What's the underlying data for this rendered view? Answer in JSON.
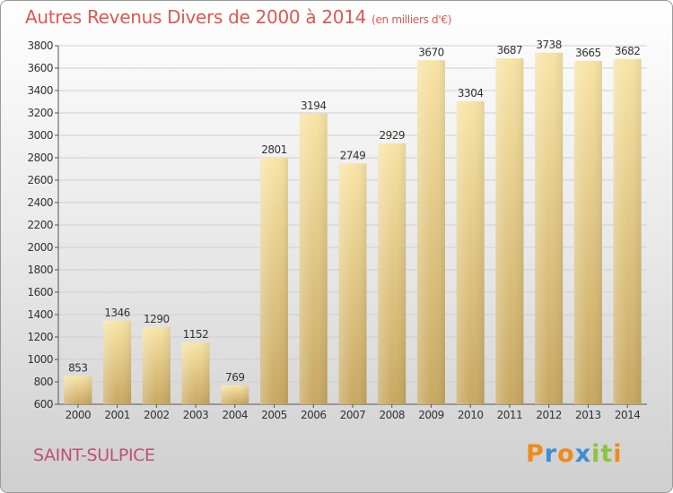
{
  "title": "Autres Revenus Divers de 2000 à 2014",
  "unit_note": "(en milliers d'€)",
  "location": "SAINT-SULPICE",
  "brand": {
    "letters": [
      "P",
      "r",
      "o",
      "x",
      "i",
      "t",
      "i"
    ],
    "colors": [
      "#f08a1c",
      "#3a8fd6",
      "#f08a1c",
      "#3a8fd6",
      "#8bc53f",
      "#8bc53f",
      "#f08a1c"
    ]
  },
  "colors": {
    "bar_top": "#f8e4a6",
    "bar_bottom": "#c8a861",
    "title": "#e0574e",
    "location": "#c0507a",
    "grid": "#cfcfcf"
  },
  "chart_data": {
    "type": "bar",
    "title": "Autres Revenus Divers de 2000 à 2014",
    "subtitle": "(en milliers d'€)",
    "categories": [
      "2000",
      "2001",
      "2002",
      "2003",
      "2004",
      "2005",
      "2006",
      "2007",
      "2008",
      "2009",
      "2010",
      "2011",
      "2012",
      "2013",
      "2014"
    ],
    "values": [
      853,
      1346,
      1290,
      1152,
      769,
      2801,
      3194,
      2749,
      2929,
      3670,
      3304,
      3687,
      3738,
      3665,
      3682
    ],
    "xlabel": "",
    "ylabel": "",
    "ylim": [
      600,
      3800
    ],
    "yticks": [
      600,
      800,
      1000,
      1200,
      1400,
      1600,
      1800,
      2000,
      2200,
      2400,
      2600,
      2800,
      3000,
      3200,
      3400,
      3600,
      3800
    ],
    "grid": true,
    "data_labels": true
  }
}
